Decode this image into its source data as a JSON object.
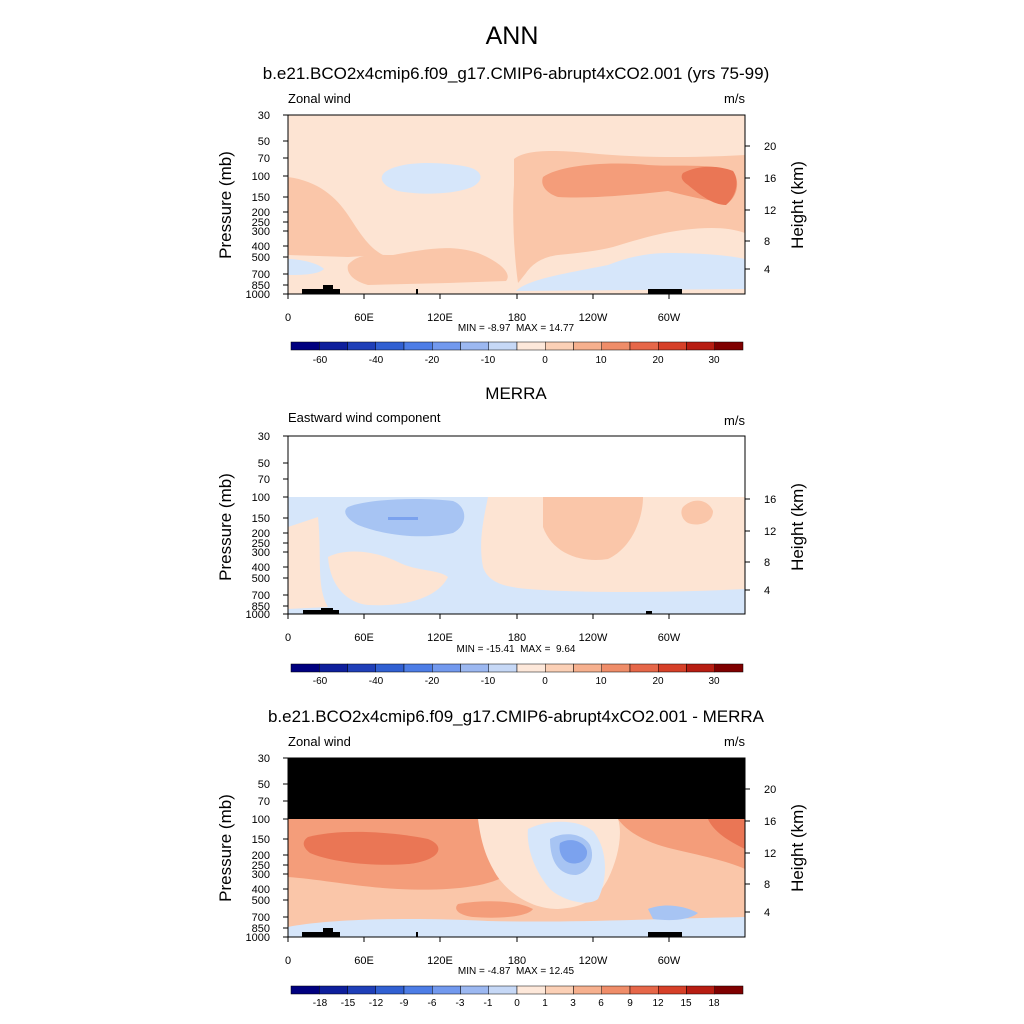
{
  "figure": {
    "title": "ANN",
    "panels": [
      {
        "title": "b.e21.BCO2x4cmip6.f09_g17.CMIP6-abrupt4xCO2.001 (yrs 75-99)",
        "left_label": "Zonal wind",
        "right_label": "m/s",
        "stats": "MIN = -8.97  MAX = 14.77",
        "colorbar_labels": [
          "-60",
          "-40",
          "-20",
          "-10",
          "0",
          "10",
          "20",
          "30"
        ]
      },
      {
        "title": "MERRA",
        "left_label": "Eastward wind component",
        "right_label": "m/s",
        "stats": "MIN = -15.41  MAX =  9.64",
        "colorbar_labels": [
          "-60",
          "-40",
          "-20",
          "-10",
          "0",
          "10",
          "20",
          "30"
        ]
      },
      {
        "title": "b.e21.BCO2x4cmip6.f09_g17.CMIP6-abrupt4xCO2.001 - MERRA",
        "left_label": "Zonal wind",
        "right_label": "m/s",
        "stats": "MIN = -4.87  MAX = 12.45",
        "colorbar_labels": [
          "-18",
          "-15",
          "-12",
          "-9",
          "-6",
          "-3",
          "-1",
          "0",
          "1",
          "3",
          "6",
          "9",
          "12",
          "15",
          "18"
        ]
      }
    ]
  },
  "chart_data": [
    {
      "type": "heatmap",
      "title": "b.e21.BCO2x4cmip6.f09_g17.CMIP6-abrupt4xCO2.001 (yrs 75-99)",
      "field": "Zonal wind",
      "units": "m/s",
      "xlabel": "",
      "x_ticks": [
        "0",
        "60E",
        "120E",
        "180",
        "120W",
        "60W"
      ],
      "ylabel": "Pressure (mb)",
      "y_ticks": [
        "30",
        "50",
        "70",
        "100",
        "150",
        "200",
        "250",
        "300",
        "400",
        "500",
        "700",
        "850",
        "1000"
      ],
      "y2label": "Height (km)",
      "y2_ticks": [
        "20",
        "16",
        "12",
        "8",
        "4"
      ],
      "ylim_mb": [
        1000,
        30
      ],
      "min": -8.97,
      "max": 14.77,
      "contour_levels": [
        -70,
        -60,
        -50,
        -40,
        -30,
        -20,
        -15,
        -10,
        -5,
        0,
        5,
        10,
        15,
        20,
        25,
        30,
        35
      ],
      "colorbar_labels": [
        "-60",
        "-40",
        "-20",
        "-10",
        "0",
        "10",
        "20",
        "30"
      ]
    },
    {
      "type": "heatmap",
      "title": "MERRA",
      "field": "Eastward wind component",
      "units": "m/s",
      "xlabel": "",
      "x_ticks": [
        "0",
        "60E",
        "120E",
        "180",
        "120W",
        "60W"
      ],
      "ylabel": "Pressure (mb)",
      "y_ticks": [
        "30",
        "50",
        "70",
        "100",
        "150",
        "200",
        "250",
        "300",
        "400",
        "500",
        "700",
        "850",
        "1000"
      ],
      "y2label": "Height (km)",
      "y2_ticks": [
        "16",
        "12",
        "8",
        "4"
      ],
      "ylim_mb": [
        1000,
        30
      ],
      "min": -15.41,
      "max": 9.64,
      "contour_levels": [
        -70,
        -60,
        -50,
        -40,
        -30,
        -20,
        -15,
        -10,
        -5,
        0,
        5,
        10,
        15,
        20,
        25,
        30,
        35
      ],
      "colorbar_labels": [
        "-60",
        "-40",
        "-20",
        "-10",
        "0",
        "10",
        "20",
        "30"
      ]
    },
    {
      "type": "heatmap",
      "title": "b.e21.BCO2x4cmip6.f09_g17.CMIP6-abrupt4xCO2.001 - MERRA",
      "field": "Zonal wind",
      "units": "m/s",
      "xlabel": "",
      "x_ticks": [
        "0",
        "60E",
        "120E",
        "180",
        "120W",
        "60W"
      ],
      "ylabel": "Pressure (mb)",
      "y_ticks": [
        "30",
        "50",
        "70",
        "100",
        "150",
        "200",
        "250",
        "300",
        "400",
        "500",
        "700",
        "850",
        "1000"
      ],
      "y2label": "Height (km)",
      "y2_ticks": [
        "20",
        "16",
        "12",
        "8",
        "4"
      ],
      "ylim_mb": [
        1000,
        30
      ],
      "min": -4.87,
      "max": 12.45,
      "contour_levels": [
        -20,
        -18,
        -15,
        -12,
        -9,
        -6,
        -3,
        -1,
        0,
        1,
        3,
        6,
        9,
        12,
        15,
        18,
        20
      ],
      "colorbar_labels": [
        "-18",
        "-15",
        "-12",
        "-9",
        "-6",
        "-3",
        "-1",
        "0",
        "1",
        "3",
        "6",
        "9",
        "12",
        "15",
        "18"
      ]
    }
  ],
  "colors": {
    "palette": [
      "#00007f",
      "#0e1f9c",
      "#1f3fb8",
      "#3160d2",
      "#4d7de6",
      "#7299ee",
      "#9cb8f1",
      "#c6d8f6",
      "#dfeaf9",
      "#fde8da",
      "#fbd0b6",
      "#f6b08e",
      "#ef8d69",
      "#e66749",
      "#d64028",
      "#b71d12",
      "#7f0000"
    ],
    "blue_light": "#d6e6fa",
    "blue_mid": "#a7c4f3",
    "blue_strong": "#7ba2ee",
    "orange_light": "#fde4d3",
    "orange_mid": "#fac6a9",
    "orange_strong": "#f49d7a",
    "red_mid": "#ea7655",
    "masked": "#000000"
  }
}
